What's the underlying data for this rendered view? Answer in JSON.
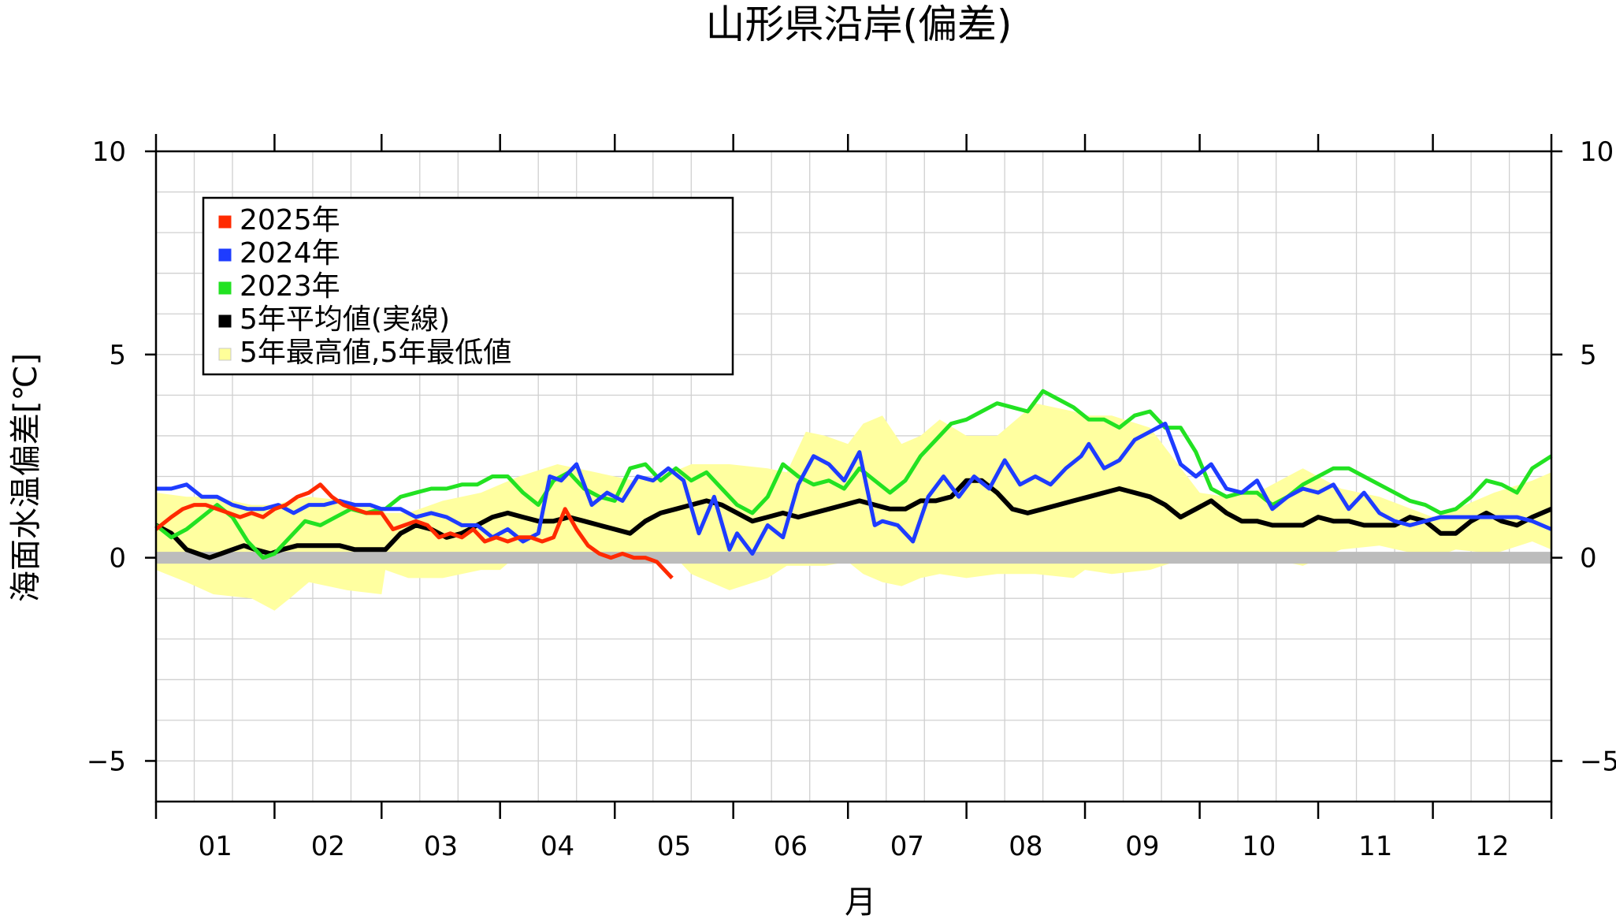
{
  "chart_data": {
    "type": "line",
    "title": "山形県沿岸(偏差)",
    "xlabel": "月",
    "ylabel": "海面水温偏差[℃]",
    "ylim": [
      -6,
      10
    ],
    "xlim": [
      0,
      365
    ],
    "y_ticks": [
      -5,
      0,
      5,
      10
    ],
    "y_tick_labels": [
      "−5",
      "0",
      "5",
      "10"
    ],
    "month_labels": [
      "01",
      "02",
      "03",
      "04",
      "05",
      "06",
      "07",
      "08",
      "09",
      "10",
      "11",
      "12"
    ],
    "grid": true,
    "legend_position": "top-left",
    "legend": [
      {
        "label": "2025年",
        "color": "#ff2a00"
      },
      {
        "label": "2024年",
        "color": "#1e3cff"
      },
      {
        "label": "2023年",
        "color": "#22e222"
      },
      {
        "label": "5年平均値(実線)",
        "color": "#000000"
      },
      {
        "label": "5年最高値,5年最低値",
        "color": "#ffff99"
      }
    ],
    "band": {
      "name": "5年最高値,5年最低値",
      "color": "#ffffa0",
      "x": [
        0,
        8,
        15,
        25,
        31,
        35,
        40,
        50,
        59,
        60,
        66,
        75,
        85,
        90,
        95,
        105,
        115,
        125,
        135,
        140,
        150,
        160,
        165,
        170,
        175,
        181,
        185,
        190,
        195,
        200,
        205,
        212,
        220,
        230,
        240,
        243,
        250,
        260,
        273,
        280,
        290,
        300,
        310,
        320,
        334,
        340,
        350,
        360,
        365
      ],
      "upper": [
        1.6,
        1.5,
        1.5,
        1.3,
        1.3,
        1.4,
        1.5,
        1.4,
        1.2,
        1.1,
        1.1,
        1.4,
        1.6,
        1.8,
        2.0,
        2.3,
        2.1,
        1.9,
        2.1,
        2.3,
        2.3,
        2.2,
        2.1,
        3.1,
        3.0,
        2.8,
        3.3,
        3.5,
        2.8,
        3.0,
        3.4,
        3.0,
        3.0,
        3.8,
        3.6,
        3.5,
        3.5,
        3.2,
        1.6,
        1.5,
        1.7,
        2.2,
        1.7,
        1.5,
        1.0,
        1.2,
        1.6,
        1.9,
        2.1
      ],
      "lower": [
        -0.3,
        -0.6,
        -0.9,
        -1.0,
        -1.3,
        -1.0,
        -0.6,
        -0.8,
        -0.9,
        -0.3,
        -0.5,
        -0.5,
        -0.3,
        -0.3,
        0.1,
        0.1,
        0.0,
        0.0,
        0.1,
        -0.4,
        -0.8,
        -0.5,
        -0.2,
        -0.2,
        -0.2,
        -0.1,
        -0.4,
        -0.6,
        -0.7,
        -0.5,
        -0.4,
        -0.5,
        -0.4,
        -0.4,
        -0.5,
        -0.3,
        -0.4,
        -0.3,
        0.1,
        0.1,
        0.0,
        -0.2,
        0.2,
        0.3,
        0.0,
        0.2,
        0.1,
        0.4,
        0.2
      ]
    },
    "series": [
      {
        "name": "5年平均値(実線)",
        "color": "#000000",
        "width": 6,
        "x": [
          0,
          4,
          8,
          11,
          14,
          17,
          20,
          23,
          26,
          30,
          33,
          37,
          41,
          45,
          48,
          52,
          56,
          59,
          60,
          64,
          68,
          72,
          76,
          80,
          84,
          88,
          92,
          96,
          100,
          104,
          108,
          112,
          116,
          120,
          124,
          128,
          132,
          136,
          140,
          144,
          148,
          152,
          156,
          160,
          164,
          168,
          172,
          176,
          180,
          184,
          188,
          192,
          196,
          200,
          204,
          208,
          212,
          216,
          220,
          224,
          228,
          232,
          236,
          240,
          244,
          248,
          252,
          256,
          260,
          264,
          268,
          272,
          276,
          280,
          284,
          288,
          292,
          296,
          300,
          304,
          308,
          312,
          316,
          320,
          324,
          328,
          332,
          336,
          340,
          344,
          348,
          352,
          356,
          360,
          365
        ],
        "y": [
          0.8,
          0.6,
          0.2,
          0.1,
          0.0,
          0.1,
          0.2,
          0.3,
          0.2,
          0.1,
          0.2,
          0.3,
          0.3,
          0.3,
          0.3,
          0.2,
          0.2,
          0.2,
          0.2,
          0.6,
          0.8,
          0.7,
          0.5,
          0.6,
          0.8,
          1.0,
          1.1,
          1.0,
          0.9,
          0.9,
          1.0,
          0.9,
          0.8,
          0.7,
          0.6,
          0.9,
          1.1,
          1.2,
          1.3,
          1.4,
          1.3,
          1.1,
          0.9,
          1.0,
          1.1,
          1.0,
          1.1,
          1.2,
          1.3,
          1.4,
          1.3,
          1.2,
          1.2,
          1.4,
          1.4,
          1.5,
          1.9,
          1.9,
          1.6,
          1.2,
          1.1,
          1.2,
          1.3,
          1.4,
          1.5,
          1.6,
          1.7,
          1.6,
          1.5,
          1.3,
          1.0,
          1.2,
          1.4,
          1.1,
          0.9,
          0.9,
          0.8,
          0.8,
          0.8,
          1.0,
          0.9,
          0.9,
          0.8,
          0.8,
          0.8,
          1.0,
          0.9,
          0.6,
          0.6,
          0.9,
          1.1,
          0.9,
          0.8,
          1.0,
          1.2
        ]
      },
      {
        "name": "2023年",
        "color": "#22e222",
        "width": 5,
        "x": [
          0,
          4,
          8,
          12,
          16,
          20,
          24,
          28,
          31,
          35,
          39,
          43,
          47,
          51,
          55,
          59,
          60,
          64,
          68,
          72,
          76,
          80,
          84,
          88,
          92,
          96,
          100,
          104,
          108,
          112,
          116,
          120,
          124,
          128,
          132,
          136,
          140,
          144,
          148,
          152,
          156,
          160,
          164,
          168,
          172,
          176,
          180,
          184,
          188,
          192,
          196,
          200,
          204,
          208,
          212,
          216,
          220,
          224,
          228,
          232,
          236,
          240,
          244,
          248,
          252,
          256,
          260,
          264,
          268,
          272,
          276,
          280,
          284,
          288,
          292,
          296,
          300,
          304,
          308,
          312,
          316,
          320,
          324,
          328,
          332,
          336,
          340,
          344,
          348,
          352,
          356,
          360,
          365
        ],
        "y": [
          0.8,
          0.5,
          0.7,
          1.0,
          1.3,
          1.0,
          0.4,
          0.0,
          0.1,
          0.5,
          0.9,
          0.8,
          1.0,
          1.2,
          1.1,
          1.2,
          1.2,
          1.5,
          1.6,
          1.7,
          1.7,
          1.8,
          1.8,
          2.0,
          2.0,
          1.6,
          1.3,
          1.9,
          2.1,
          1.7,
          1.5,
          1.4,
          2.2,
          2.3,
          1.9,
          2.2,
          1.9,
          2.1,
          1.7,
          1.3,
          1.1,
          1.5,
          2.3,
          2.0,
          1.8,
          1.9,
          1.7,
          2.2,
          1.9,
          1.6,
          1.9,
          2.5,
          2.9,
          3.3,
          3.4,
          3.6,
          3.8,
          3.7,
          3.6,
          4.1,
          3.9,
          3.7,
          3.4,
          3.4,
          3.2,
          3.5,
          3.6,
          3.2,
          3.2,
          2.6,
          1.7,
          1.5,
          1.6,
          1.6,
          1.3,
          1.5,
          1.8,
          2.0,
          2.2,
          2.2,
          2.0,
          1.8,
          1.6,
          1.4,
          1.3,
          1.1,
          1.2,
          1.5,
          1.9,
          1.8,
          1.6,
          2.2,
          2.5
        ]
      },
      {
        "name": "2024年",
        "color": "#1e3cff",
        "width": 5,
        "x": [
          0,
          4,
          8,
          12,
          16,
          20,
          24,
          28,
          32,
          36,
          40,
          44,
          48,
          52,
          56,
          59,
          60,
          64,
          68,
          72,
          76,
          80,
          84,
          88,
          92,
          96,
          100,
          103,
          106,
          110,
          114,
          118,
          122,
          126,
          130,
          134,
          138,
          142,
          146,
          150,
          152,
          156,
          160,
          164,
          168,
          172,
          176,
          180,
          184,
          188,
          190,
          194,
          198,
          202,
          206,
          210,
          214,
          218,
          222,
          226,
          230,
          234,
          238,
          242,
          244,
          248,
          252,
          256,
          260,
          264,
          268,
          272,
          276,
          280,
          284,
          288,
          292,
          296,
          300,
          304,
          308,
          312,
          316,
          320,
          324,
          328,
          332,
          336,
          340,
          344,
          348,
          352,
          356,
          360,
          365
        ],
        "y": [
          1.7,
          1.7,
          1.8,
          1.5,
          1.5,
          1.3,
          1.2,
          1.2,
          1.3,
          1.1,
          1.3,
          1.3,
          1.4,
          1.3,
          1.3,
          1.2,
          1.2,
          1.2,
          1.0,
          1.1,
          1.0,
          0.8,
          0.8,
          0.5,
          0.7,
          0.4,
          0.6,
          2.0,
          1.9,
          2.3,
          1.3,
          1.6,
          1.4,
          2.0,
          1.9,
          2.2,
          1.9,
          0.6,
          1.5,
          0.2,
          0.6,
          0.1,
          0.8,
          0.5,
          1.8,
          2.5,
          2.3,
          1.9,
          2.6,
          0.8,
          0.9,
          0.8,
          0.4,
          1.5,
          2.0,
          1.5,
          2.0,
          1.7,
          2.4,
          1.8,
          2.0,
          1.8,
          2.2,
          2.5,
          2.8,
          2.2,
          2.4,
          2.9,
          3.1,
          3.3,
          2.3,
          2.0,
          2.3,
          1.7,
          1.6,
          1.9,
          1.2,
          1.5,
          1.7,
          1.6,
          1.8,
          1.2,
          1.6,
          1.1,
          0.9,
          0.8,
          0.9,
          1.0,
          1.0,
          1.0,
          1.0,
          1.0,
          1.0,
          0.9,
          0.7
        ]
      },
      {
        "name": "2025年",
        "color": "#ff2a00",
        "width": 5,
        "x": [
          0,
          4,
          7,
          10,
          13,
          16,
          19,
          22,
          25,
          28,
          31,
          34,
          37,
          40,
          43,
          46,
          49,
          52,
          55,
          58,
          59,
          62,
          65,
          68,
          71,
          74,
          77,
          80,
          83,
          86,
          89,
          92,
          95,
          98,
          101,
          104,
          107,
          110,
          113,
          116,
          119,
          122,
          125,
          128,
          131,
          134,
          135
        ],
        "y": [
          0.7,
          1.0,
          1.2,
          1.3,
          1.3,
          1.2,
          1.1,
          1.0,
          1.1,
          1.0,
          1.2,
          1.3,
          1.5,
          1.6,
          1.8,
          1.5,
          1.3,
          1.2,
          1.1,
          1.1,
          1.1,
          0.7,
          0.8,
          0.9,
          0.8,
          0.5,
          0.6,
          0.5,
          0.7,
          0.4,
          0.5,
          0.4,
          0.5,
          0.5,
          0.4,
          0.5,
          1.2,
          0.7,
          0.3,
          0.1,
          0.0,
          0.1,
          0.0,
          0.0,
          -0.1,
          -0.4,
          -0.5
        ]
      }
    ]
  }
}
